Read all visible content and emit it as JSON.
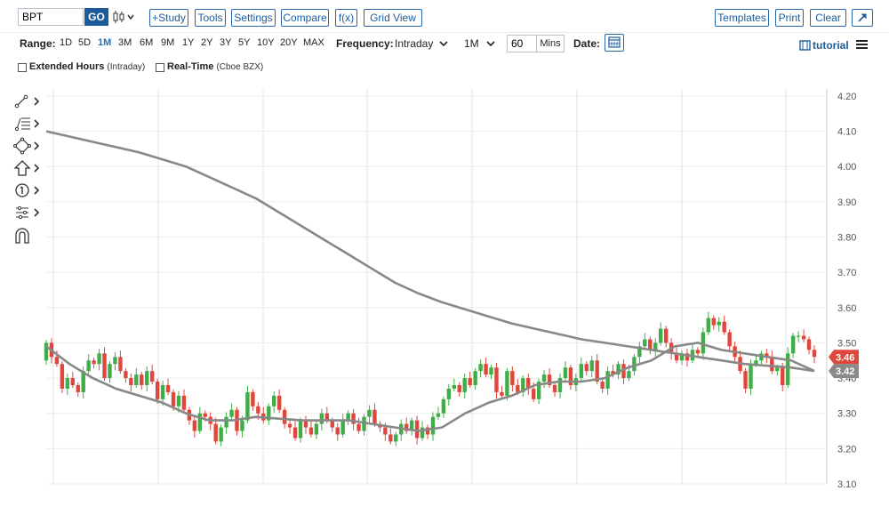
{
  "toolbar": {
    "symbol": "BPT",
    "go_label": "GO",
    "study_label": "+Study",
    "tools_label": "Tools",
    "settings_label": "Settings",
    "compare_label": "Compare",
    "fx_label": "f(x)",
    "grid_view_label": "Grid View",
    "templates_label": "Templates",
    "print_label": "Print",
    "clear_label": "Clear"
  },
  "range": {
    "label": "Range:",
    "options": [
      "1D",
      "5D",
      "1M",
      "3M",
      "6M",
      "9M",
      "1Y",
      "2Y",
      "3Y",
      "5Y",
      "10Y",
      "20Y",
      "MAX"
    ],
    "active": "1M"
  },
  "frequency": {
    "label": "Frequency:",
    "value": "Intraday",
    "period": "1M",
    "interval": "60",
    "interval_unit": "Mins"
  },
  "date_label": "Date:",
  "tutorial_label": "tutorial",
  "options": {
    "extended_hours": "Extended Hours",
    "extended_hours_note": "(Intraday)",
    "real_time": "Real-Time",
    "real_time_note": "(Cboe BZX)"
  },
  "colors": {
    "accent": "#1d5c9b",
    "up": "#3fae49",
    "down": "#e0473c",
    "moving_average": "#888888",
    "price_badge": "#e0473c",
    "ma_badge": "#8a8a8a"
  },
  "chart_data": {
    "type": "candlestick",
    "ylim": [
      3.1,
      4.22
    ],
    "yticks": [
      4.2,
      4.1,
      4.0,
      3.9,
      3.8,
      3.7,
      3.6,
      3.5,
      3.4,
      3.3,
      3.2,
      3.1
    ],
    "grid": true,
    "last_price": "3.46",
    "ma_value": "3.42",
    "closes": [
      3.5,
      3.46,
      3.44,
      3.37,
      3.4,
      3.38,
      3.36,
      3.42,
      3.45,
      3.44,
      3.47,
      3.4,
      3.44,
      3.46,
      3.42,
      3.4,
      3.38,
      3.41,
      3.38,
      3.42,
      3.39,
      3.34,
      3.38,
      3.36,
      3.32,
      3.35,
      3.31,
      3.28,
      3.25,
      3.3,
      3.29,
      3.27,
      3.22,
      3.26,
      3.29,
      3.31,
      3.25,
      3.28,
      3.36,
      3.32,
      3.3,
      3.28,
      3.32,
      3.35,
      3.31,
      3.27,
      3.26,
      3.23,
      3.28,
      3.26,
      3.24,
      3.27,
      3.3,
      3.28,
      3.26,
      3.24,
      3.28,
      3.3,
      3.27,
      3.25,
      3.29,
      3.31,
      3.27,
      3.26,
      3.24,
      3.22,
      3.24,
      3.27,
      3.25,
      3.28,
      3.23,
      3.26,
      3.24,
      3.29,
      3.3,
      3.34,
      3.37,
      3.38,
      3.36,
      3.4,
      3.38,
      3.42,
      3.44,
      3.41,
      3.43,
      3.36,
      3.35,
      3.42,
      3.38,
      3.36,
      3.4,
      3.37,
      3.34,
      3.39,
      3.41,
      3.38,
      3.36,
      3.4,
      3.43,
      3.38,
      3.4,
      3.44,
      3.42,
      3.45,
      3.39,
      3.37,
      3.42,
      3.41,
      3.44,
      3.4,
      3.42,
      3.46,
      3.49,
      3.51,
      3.48,
      3.5,
      3.54,
      3.5,
      3.47,
      3.45,
      3.47,
      3.45,
      3.48,
      3.47,
      3.53,
      3.57,
      3.55,
      3.56,
      3.53,
      3.49,
      3.46,
      3.42,
      3.37,
      3.44,
      3.45,
      3.47,
      3.46,
      3.42,
      3.43,
      3.38,
      3.47,
      3.52,
      3.52,
      3.51,
      3.48,
      3.46
    ],
    "moving_averages": [
      {
        "values": [
          4.1,
          4.085,
          4.07,
          4.055,
          4.04,
          4.02,
          4.0,
          3.97,
          3.94,
          3.91,
          3.87,
          3.83,
          3.79,
          3.75,
          3.71,
          3.67,
          3.64,
          3.615,
          3.595,
          3.575,
          3.555,
          3.54,
          3.525,
          3.51,
          3.5,
          3.49,
          3.48,
          3.47,
          3.46,
          3.45,
          3.44,
          3.435,
          3.43,
          3.42
        ]
      },
      {
        "values": [
          3.49,
          3.44,
          3.4,
          3.37,
          3.35,
          3.33,
          3.3,
          3.28,
          3.28,
          3.29,
          3.285,
          3.28,
          3.28,
          3.28,
          3.27,
          3.26,
          3.25,
          3.26,
          3.3,
          3.33,
          3.35,
          3.38,
          3.39,
          3.39,
          3.4,
          3.43,
          3.45,
          3.49,
          3.5,
          3.48,
          3.47,
          3.46,
          3.45,
          3.42
        ]
      }
    ]
  }
}
